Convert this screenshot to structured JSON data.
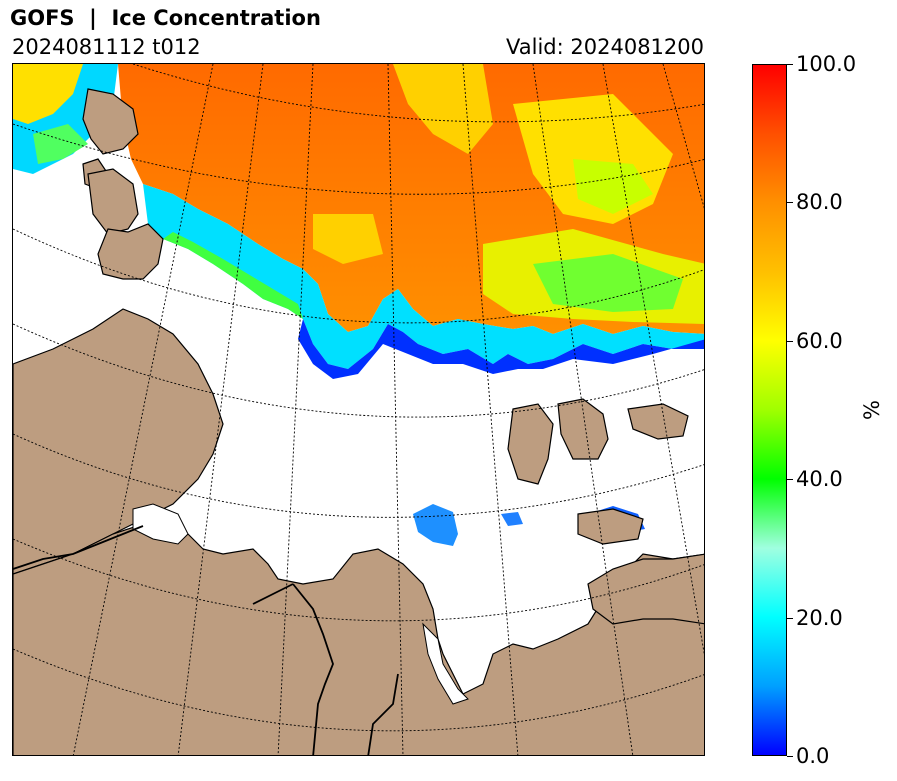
{
  "header": {
    "title": "GOFS  |  Ice Concentration",
    "run_label": "2024081112 t012",
    "valid_label": "Valid: 2024081200"
  },
  "colorbar": {
    "unit": "%",
    "min": 0,
    "max": 100,
    "ticks": [
      {
        "value": 0,
        "label": "0.0"
      },
      {
        "value": 20,
        "label": "20.0"
      },
      {
        "value": 40,
        "label": "40.0"
      },
      {
        "value": 60,
        "label": "60.0"
      },
      {
        "value": 80,
        "label": "80.0"
      },
      {
        "value": 100,
        "label": "100.0"
      }
    ],
    "stops": [
      {
        "value": 0,
        "color": "#0000ff"
      },
      {
        "value": 10,
        "color": "#00a0ff"
      },
      {
        "value": 20,
        "color": "#00ffff"
      },
      {
        "value": 30,
        "color": "#a0ffe0"
      },
      {
        "value": 40,
        "color": "#00ff00"
      },
      {
        "value": 50,
        "color": "#a0ff00"
      },
      {
        "value": 60,
        "color": "#ffff00"
      },
      {
        "value": 70,
        "color": "#ffc000"
      },
      {
        "value": 80,
        "color": "#ff9000"
      },
      {
        "value": 90,
        "color": "#ff5000"
      },
      {
        "value": 100,
        "color": "#ff0000"
      }
    ]
  },
  "map": {
    "land_color": "#bd9d80",
    "ocean_color": "#ffffff",
    "coastline_color": "#000000",
    "graticule_style": "dotted"
  }
}
